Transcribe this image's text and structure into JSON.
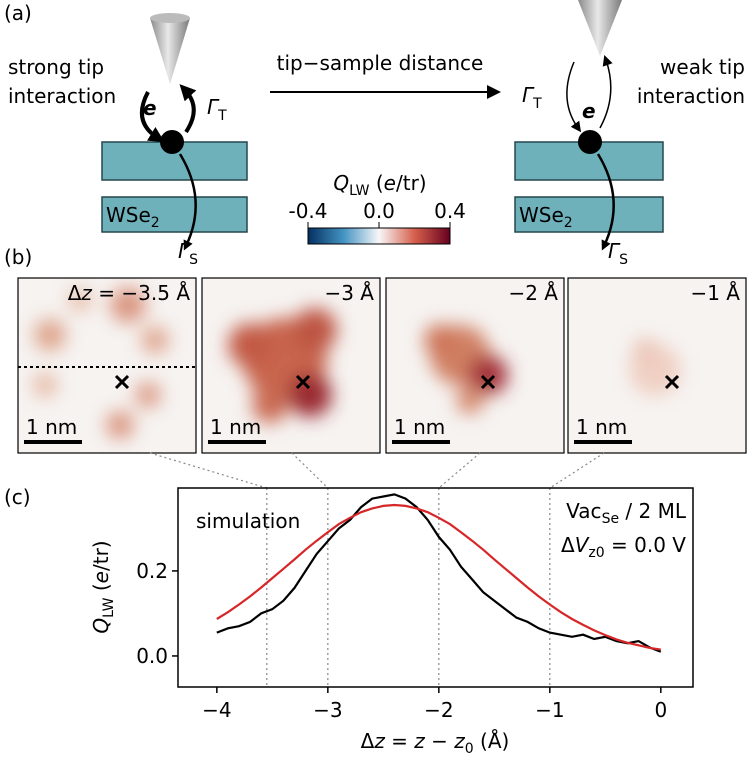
{
  "panels": {
    "a": {
      "label": "(a)",
      "left_text": [
        "strong tip",
        "interaction"
      ],
      "right_text": [
        "weak tip",
        "interaction"
      ],
      "electron": "e",
      "gamma_t": [
        "Γ",
        "T"
      ],
      "gamma_s": [
        "Γ",
        "S"
      ],
      "layer": [
        "WSe",
        "2"
      ],
      "arrow_text": "tip−sample distance",
      "colorbar": {
        "title": [
          "Q",
          "LW",
          " (",
          "e",
          "/tr)"
        ],
        "lim": [
          -0.4,
          0.4
        ],
        "ticks": [
          -0.4,
          {
            "value": 0,
            "label": "0.0"
          },
          0.4
        ]
      }
    },
    "b": {
      "label": "(b)",
      "images": [
        {
          "label": [
            "Δ",
            "z",
            " = −3.5 Å"
          ],
          "scale": "1 nm"
        },
        {
          "label": [
            "−3 Å"
          ],
          "scale": "1 nm"
        },
        {
          "label": [
            "−2 Å"
          ],
          "scale": "1 nm"
        },
        {
          "label": [
            "−1 Å"
          ],
          "scale": "1 nm"
        }
      ]
    }
  },
  "chart_data": {
    "type": "line",
    "label": "(c)",
    "y_label": [
      "Q",
      "LW",
      " (",
      "e",
      "/tr)"
    ],
    "x_label": [
      "Δ",
      "z",
      " = ",
      "z",
      " − ",
      "z",
      "0",
      " (Å)"
    ],
    "annotations": [
      [
        "Vac",
        "Se",
        " / 2 ML"
      ],
      [
        "Δ",
        "V",
        "z0",
        " = 0.0 V"
      ]
    ],
    "xlim": [
      -4.35,
      0.29
    ],
    "ylim": [
      -0.073,
      0.395
    ],
    "xticks": [
      {
        "value": -4,
        "label": "−4"
      },
      {
        "value": -3,
        "label": "−3"
      },
      {
        "value": -2,
        "label": "−2"
      },
      {
        "value": -1,
        "label": "−1"
      },
      0
    ],
    "yticks": [
      {
        "value": 0,
        "label": "0.0"
      },
      0.2
    ],
    "reference_lines": [
      -3.55,
      -3,
      -2,
      -1
    ],
    "x": [
      -4.0,
      -3.9,
      -3.8,
      -3.7,
      -3.6,
      -3.5,
      -3.4,
      -3.3,
      -3.2,
      -3.1,
      -3.0,
      -2.9,
      -2.8,
      -2.7,
      -2.6,
      -2.5,
      -2.4,
      -2.3,
      -2.2,
      -2.1,
      -2.0,
      -1.9,
      -1.8,
      -1.7,
      -1.6,
      -1.5,
      -1.4,
      -1.3,
      -1.2,
      -1.1,
      -1.0,
      -0.9,
      -0.8,
      -0.7,
      -0.6,
      -0.5,
      -0.4,
      -0.3,
      -0.2,
      -0.1,
      0.0
    ],
    "series": [
      {
        "color": "#000000",
        "values": [
          0.055,
          0.065,
          0.07,
          0.08,
          0.1,
          0.11,
          0.13,
          0.16,
          0.2,
          0.24,
          0.27,
          0.3,
          0.32,
          0.35,
          0.37,
          0.375,
          0.38,
          0.37,
          0.35,
          0.32,
          0.28,
          0.25,
          0.21,
          0.18,
          0.15,
          0.13,
          0.11,
          0.09,
          0.08,
          0.065,
          0.055,
          0.05,
          0.045,
          0.05,
          0.04,
          0.045,
          0.035,
          0.03,
          0.035,
          0.02,
          0.01
        ]
      },
      {
        "name": "simulation",
        "color": "#d62728",
        "values": [
          0.087,
          0.103,
          0.121,
          0.14,
          0.161,
          0.183,
          0.205,
          0.227,
          0.25,
          0.271,
          0.291,
          0.31,
          0.325,
          0.338,
          0.347,
          0.353,
          0.355,
          0.353,
          0.347,
          0.338,
          0.325,
          0.31,
          0.291,
          0.271,
          0.25,
          0.227,
          0.205,
          0.183,
          0.161,
          0.14,
          0.121,
          0.103,
          0.087,
          0.073,
          0.06,
          0.049,
          0.039,
          0.031,
          0.025,
          0.019,
          0.015
        ]
      }
    ]
  }
}
